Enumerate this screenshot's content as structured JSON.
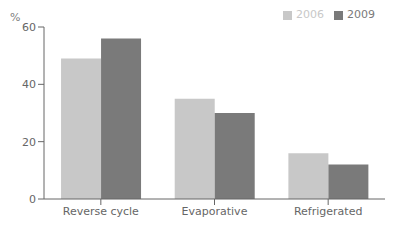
{
  "chart_data": {
    "type": "bar",
    "y_label": "%",
    "categories": [
      "Reverse cycle",
      "Evaporative",
      "Refrigerated"
    ],
    "series": [
      {
        "name": "2006",
        "color": "#c8c8c8",
        "values": [
          49,
          35,
          16
        ]
      },
      {
        "name": "2009",
        "color": "#7a7a7a",
        "values": [
          56,
          30,
          12
        ]
      }
    ],
    "ylim": [
      0,
      60
    ],
    "yticks": [
      0,
      20,
      40,
      60
    ],
    "legend": "upper right",
    "grid": false
  }
}
